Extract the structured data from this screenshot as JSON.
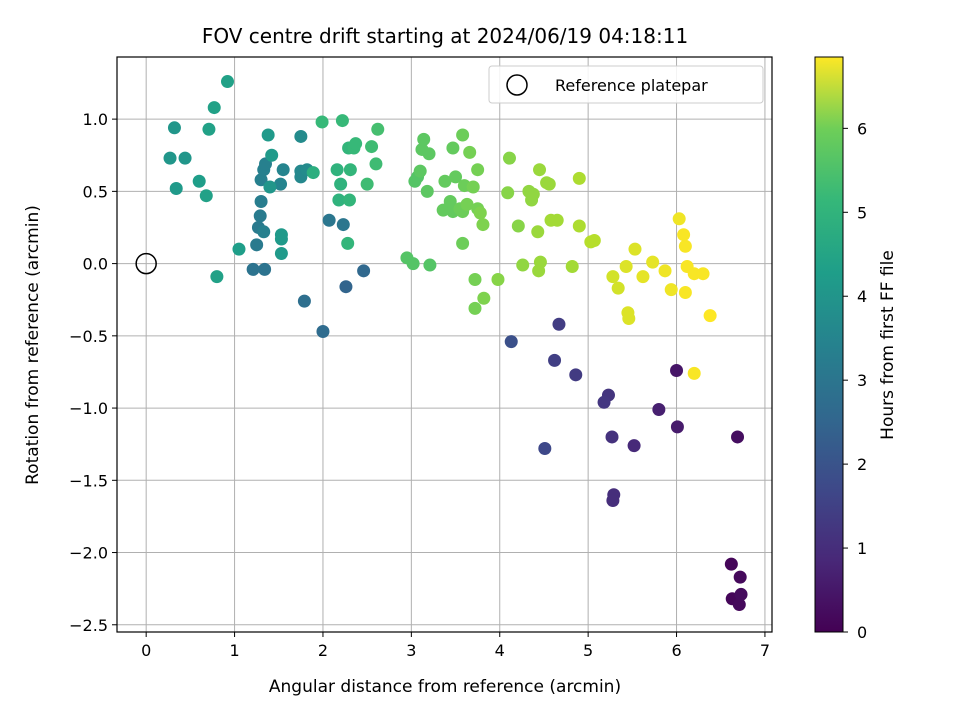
{
  "chart_data": {
    "type": "scatter",
    "title": "FOV centre drift starting at 2024/06/19 04:18:11",
    "xlabel": "Angular distance from reference (arcmin)",
    "ylabel": "Rotation from reference (arcmin)",
    "xlim": [
      -0.33,
      7.08
    ],
    "ylim": [
      -2.55,
      1.43
    ],
    "xticks": [
      0,
      1,
      2,
      3,
      4,
      5,
      6,
      7
    ],
    "xtick_labels": [
      "0",
      "1",
      "2",
      "3",
      "4",
      "5",
      "6",
      "7"
    ],
    "yticks": [
      -2.5,
      -2.0,
      -1.5,
      -1.0,
      -0.5,
      0.0,
      0.5,
      1.0
    ],
    "ytick_labels": [
      "−2.5",
      "−2.0",
      "−1.5",
      "−1.0",
      "−0.5",
      "0.0",
      "0.5",
      "1.0"
    ],
    "grid": true,
    "colormap": "viridis",
    "colorbar": {
      "label": "Hours from first FF file",
      "range": [
        0,
        6.85
      ],
      "ticks": [
        0,
        1,
        2,
        3,
        4,
        5,
        6
      ],
      "tick_labels": [
        "0",
        "1",
        "2",
        "3",
        "4",
        "5",
        "6"
      ]
    },
    "legend": {
      "position": "top-right",
      "entries": [
        {
          "label": "Reference platepar",
          "marker": "open-circle"
        }
      ]
    },
    "reference_point": {
      "x": 0.0,
      "y": 0.0,
      "label": "Reference platepar"
    },
    "series": [
      {
        "points": [
          {
            "x": 6.62,
            "y": -2.08,
            "c": 0.1
          },
          {
            "x": 6.72,
            "y": -2.17,
            "c": 0.15
          },
          {
            "x": 6.63,
            "y": -2.32,
            "c": 0.1
          },
          {
            "x": 6.71,
            "y": -2.36,
            "c": 0.15
          },
          {
            "x": 6.73,
            "y": -2.29,
            "c": 0.2
          },
          {
            "x": 6.69,
            "y": -1.2,
            "c": 0.25
          },
          {
            "x": 6.0,
            "y": -0.74,
            "c": 0.4
          },
          {
            "x": 6.01,
            "y": -1.13,
            "c": 0.5
          },
          {
            "x": 5.8,
            "y": -1.01,
            "c": 0.6
          },
          {
            "x": 5.52,
            "y": -1.26,
            "c": 0.8
          },
          {
            "x": 5.29,
            "y": -1.6,
            "c": 0.9
          },
          {
            "x": 5.28,
            "y": -1.64,
            "c": 0.9
          },
          {
            "x": 5.27,
            "y": -1.2,
            "c": 1.0
          },
          {
            "x": 5.23,
            "y": -0.91,
            "c": 1.05
          },
          {
            "x": 5.18,
            "y": -0.96,
            "c": 1.1
          },
          {
            "x": 4.86,
            "y": -0.77,
            "c": 1.2
          },
          {
            "x": 4.67,
            "y": -0.42,
            "c": 1.25
          },
          {
            "x": 4.62,
            "y": -0.67,
            "c": 1.3
          },
          {
            "x": 4.51,
            "y": -1.28,
            "c": 1.5
          },
          {
            "x": 4.13,
            "y": -0.54,
            "c": 1.7
          },
          {
            "x": 2.26,
            "y": -0.16,
            "c": 2.2
          },
          {
            "x": 2.46,
            "y": -0.05,
            "c": 2.3
          },
          {
            "x": 2.0,
            "y": -0.47,
            "c": 2.4
          },
          {
            "x": 1.79,
            "y": -0.26,
            "c": 2.5
          },
          {
            "x": 1.34,
            "y": -0.04,
            "c": 2.6
          },
          {
            "x": 1.21,
            "y": -0.04,
            "c": 2.6
          },
          {
            "x": 2.07,
            "y": 0.3,
            "c": 2.7
          },
          {
            "x": 2.23,
            "y": 0.27,
            "c": 2.7
          },
          {
            "x": 1.25,
            "y": 0.13,
            "c": 2.8
          },
          {
            "x": 1.27,
            "y": 0.25,
            "c": 2.8
          },
          {
            "x": 1.29,
            "y": 0.33,
            "c": 2.85
          },
          {
            "x": 1.3,
            "y": 0.43,
            "c": 2.9
          },
          {
            "x": 1.33,
            "y": 0.22,
            "c": 3.0
          },
          {
            "x": 1.3,
            "y": 0.58,
            "c": 3.0
          },
          {
            "x": 1.33,
            "y": 0.65,
            "c": 3.0
          },
          {
            "x": 1.35,
            "y": 0.69,
            "c": 3.0
          },
          {
            "x": 1.52,
            "y": 0.55,
            "c": 3.1
          },
          {
            "x": 1.55,
            "y": 0.65,
            "c": 3.1
          },
          {
            "x": 1.75,
            "y": 0.6,
            "c": 3.2
          },
          {
            "x": 1.75,
            "y": 0.64,
            "c": 3.2
          },
          {
            "x": 1.82,
            "y": 0.65,
            "c": 3.3
          },
          {
            "x": 1.75,
            "y": 0.88,
            "c": 3.3
          },
          {
            "x": 1.4,
            "y": 0.53,
            "c": 3.6
          },
          {
            "x": 1.53,
            "y": 0.07,
            "c": 3.7
          },
          {
            "x": 1.53,
            "y": 0.17,
            "c": 3.7
          },
          {
            "x": 1.53,
            "y": 0.2,
            "c": 3.7
          },
          {
            "x": 1.42,
            "y": 0.75,
            "c": 3.7
          },
          {
            "x": 1.38,
            "y": 0.89,
            "c": 3.7
          },
          {
            "x": 1.05,
            "y": 0.1,
            "c": 3.8
          },
          {
            "x": 0.8,
            "y": -0.09,
            "c": 3.9
          },
          {
            "x": 0.92,
            "y": 1.26,
            "c": 3.9
          },
          {
            "x": 0.77,
            "y": 1.08,
            "c": 3.9
          },
          {
            "x": 0.71,
            "y": 0.93,
            "c": 3.9
          },
          {
            "x": 0.68,
            "y": 0.47,
            "c": 3.9
          },
          {
            "x": 0.6,
            "y": 0.57,
            "c": 3.8
          },
          {
            "x": 0.32,
            "y": 0.94,
            "c": 3.6
          },
          {
            "x": 0.44,
            "y": 0.73,
            "c": 3.6
          },
          {
            "x": 0.27,
            "y": 0.73,
            "c": 3.6
          },
          {
            "x": 0.34,
            "y": 0.52,
            "c": 3.7
          },
          {
            "x": 1.89,
            "y": 0.63,
            "c": 4.3
          },
          {
            "x": 2.18,
            "y": 0.44,
            "c": 4.4
          },
          {
            "x": 2.16,
            "y": 0.65,
            "c": 4.4
          },
          {
            "x": 2.2,
            "y": 0.55,
            "c": 4.4
          },
          {
            "x": 2.28,
            "y": 0.14,
            "c": 4.5
          },
          {
            "x": 2.3,
            "y": 0.44,
            "c": 4.5
          },
          {
            "x": 2.31,
            "y": 0.65,
            "c": 4.5
          },
          {
            "x": 2.29,
            "y": 0.8,
            "c": 4.5
          },
          {
            "x": 2.35,
            "y": 0.8,
            "c": 4.6
          },
          {
            "x": 2.37,
            "y": 0.83,
            "c": 4.6
          },
          {
            "x": 2.22,
            "y": 0.99,
            "c": 4.6
          },
          {
            "x": 1.99,
            "y": 0.98,
            "c": 4.6
          },
          {
            "x": 2.5,
            "y": 0.55,
            "c": 4.7
          },
          {
            "x": 2.55,
            "y": 0.81,
            "c": 4.7
          },
          {
            "x": 2.6,
            "y": 0.69,
            "c": 4.7
          },
          {
            "x": 2.62,
            "y": 0.93,
            "c": 4.8
          },
          {
            "x": 2.95,
            "y": 0.04,
            "c": 5.0
          },
          {
            "x": 3.02,
            "y": 0.0,
            "c": 5.0
          },
          {
            "x": 3.21,
            "y": -0.01,
            "c": 5.0
          },
          {
            "x": 3.04,
            "y": 0.57,
            "c": 5.0
          },
          {
            "x": 3.07,
            "y": 0.6,
            "c": 5.0
          },
          {
            "x": 3.1,
            "y": 0.64,
            "c": 5.1
          },
          {
            "x": 3.12,
            "y": 0.79,
            "c": 5.1
          },
          {
            "x": 3.14,
            "y": 0.86,
            "c": 5.1
          },
          {
            "x": 3.18,
            "y": 0.5,
            "c": 5.1
          },
          {
            "x": 3.2,
            "y": 0.76,
            "c": 5.1
          },
          {
            "x": 3.36,
            "y": 0.37,
            "c": 5.2
          },
          {
            "x": 3.38,
            "y": 0.57,
            "c": 5.2
          },
          {
            "x": 3.44,
            "y": 0.43,
            "c": 5.2
          },
          {
            "x": 3.47,
            "y": 0.36,
            "c": 5.2
          },
          {
            "x": 3.47,
            "y": 0.8,
            "c": 5.2
          },
          {
            "x": 3.5,
            "y": 0.6,
            "c": 5.2
          },
          {
            "x": 3.55,
            "y": 0.38,
            "c": 5.3
          },
          {
            "x": 3.58,
            "y": 0.36,
            "c": 5.3
          },
          {
            "x": 3.58,
            "y": 0.14,
            "c": 5.3
          },
          {
            "x": 3.6,
            "y": 0.54,
            "c": 5.3
          },
          {
            "x": 3.58,
            "y": 0.89,
            "c": 5.3
          },
          {
            "x": 3.63,
            "y": 0.41,
            "c": 5.4
          },
          {
            "x": 3.66,
            "y": 0.77,
            "c": 5.4
          },
          {
            "x": 3.7,
            "y": 0.53,
            "c": 5.4
          },
          {
            "x": 3.72,
            "y": -0.11,
            "c": 5.4
          },
          {
            "x": 3.72,
            "y": -0.31,
            "c": 5.4
          },
          {
            "x": 3.75,
            "y": 0.38,
            "c": 5.4
          },
          {
            "x": 3.75,
            "y": 0.65,
            "c": 5.4
          },
          {
            "x": 3.78,
            "y": 0.35,
            "c": 5.5
          },
          {
            "x": 3.81,
            "y": 0.27,
            "c": 5.5
          },
          {
            "x": 3.82,
            "y": -0.24,
            "c": 5.5
          },
          {
            "x": 3.98,
            "y": -0.11,
            "c": 5.6
          },
          {
            "x": 4.09,
            "y": 0.49,
            "c": 5.6
          },
          {
            "x": 4.11,
            "y": 0.73,
            "c": 5.6
          },
          {
            "x": 4.21,
            "y": 0.26,
            "c": 5.6
          },
          {
            "x": 4.26,
            "y": -0.01,
            "c": 5.7
          },
          {
            "x": 4.33,
            "y": 0.5,
            "c": 5.7
          },
          {
            "x": 4.36,
            "y": 0.44,
            "c": 5.7
          },
          {
            "x": 4.38,
            "y": 0.48,
            "c": 5.7
          },
          {
            "x": 4.43,
            "y": 0.22,
            "c": 5.8
          },
          {
            "x": 4.44,
            "y": -0.05,
            "c": 5.8
          },
          {
            "x": 4.45,
            "y": 0.65,
            "c": 5.8
          },
          {
            "x": 4.46,
            "y": 0.01,
            "c": 5.8
          },
          {
            "x": 4.53,
            "y": 0.56,
            "c": 5.8
          },
          {
            "x": 4.56,
            "y": 0.55,
            "c": 5.8
          },
          {
            "x": 4.58,
            "y": 0.3,
            "c": 5.9
          },
          {
            "x": 4.65,
            "y": 0.3,
            "c": 5.9
          },
          {
            "x": 4.82,
            "y": -0.02,
            "c": 5.9
          },
          {
            "x": 4.9,
            "y": 0.59,
            "c": 6.0
          },
          {
            "x": 4.9,
            "y": 0.26,
            "c": 6.0
          },
          {
            "x": 5.03,
            "y": 0.15,
            "c": 6.1
          },
          {
            "x": 5.07,
            "y": 0.16,
            "c": 6.1
          },
          {
            "x": 5.28,
            "y": -0.09,
            "c": 6.4
          },
          {
            "x": 5.34,
            "y": -0.17,
            "c": 6.4
          },
          {
            "x": 5.43,
            "y": -0.02,
            "c": 6.5
          },
          {
            "x": 5.45,
            "y": -0.34,
            "c": 6.5
          },
          {
            "x": 5.46,
            "y": -0.38,
            "c": 6.5
          },
          {
            "x": 5.53,
            "y": 0.1,
            "c": 6.5
          },
          {
            "x": 5.62,
            "y": -0.09,
            "c": 6.6
          },
          {
            "x": 5.73,
            "y": 0.01,
            "c": 6.6
          },
          {
            "x": 5.87,
            "y": -0.05,
            "c": 6.7
          },
          {
            "x": 5.94,
            "y": -0.18,
            "c": 6.7
          },
          {
            "x": 6.03,
            "y": 0.31,
            "c": 6.7
          },
          {
            "x": 6.08,
            "y": 0.2,
            "c": 6.8
          },
          {
            "x": 6.1,
            "y": 0.12,
            "c": 6.8
          },
          {
            "x": 6.1,
            "y": -0.2,
            "c": 6.8
          },
          {
            "x": 6.12,
            "y": -0.02,
            "c": 6.8
          },
          {
            "x": 6.2,
            "y": -0.07,
            "c": 6.8
          },
          {
            "x": 6.2,
            "y": -0.76,
            "c": 6.8
          },
          {
            "x": 6.3,
            "y": -0.07,
            "c": 6.8
          },
          {
            "x": 6.38,
            "y": -0.36,
            "c": 6.85
          }
        ]
      }
    ]
  }
}
